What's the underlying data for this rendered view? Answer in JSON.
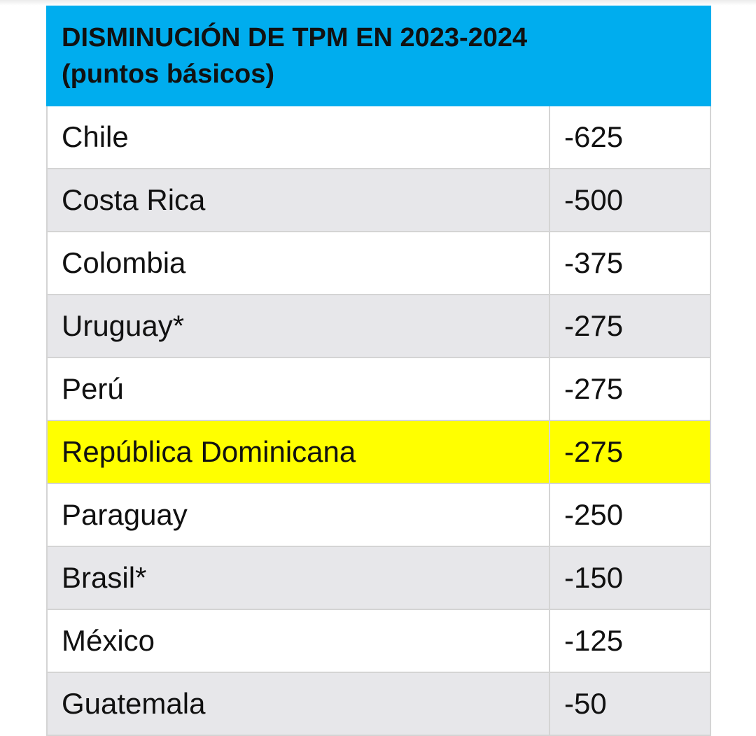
{
  "header": {
    "title_line1": "DISMINUCIÓN DE TPM EN 2023-2024",
    "title_line2": "(puntos básicos)"
  },
  "highlight_color": "#ffff00",
  "header_color": "#00adee",
  "rows": [
    {
      "country": "Chile",
      "value": "-625"
    },
    {
      "country": "Costa Rica",
      "value": "-500"
    },
    {
      "country": "Colombia",
      "value": "-375"
    },
    {
      "country": "Uruguay*",
      "value": "-275"
    },
    {
      "country": "Perú",
      "value": "-275"
    },
    {
      "country": "República Dominicana",
      "value": "-275",
      "highlighted": true
    },
    {
      "country": "Paraguay",
      "value": "-250"
    },
    {
      "country": "Brasil*",
      "value": "-150"
    },
    {
      "country": "México",
      "value": "-125"
    },
    {
      "country": "Guatemala",
      "value": "-50"
    }
  ]
}
